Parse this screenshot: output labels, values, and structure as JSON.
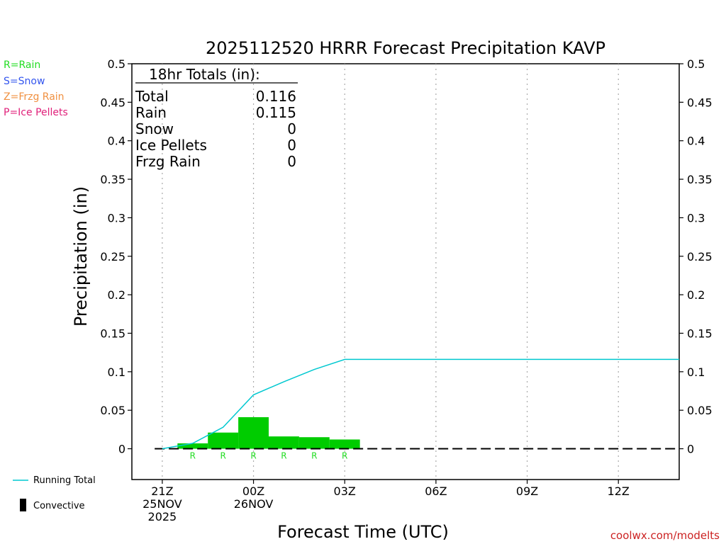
{
  "legend": {
    "rain": {
      "label": "R=Rain",
      "color": "#22dd22"
    },
    "snow": {
      "label": "S=Snow",
      "color": "#3355ee"
    },
    "frzg_rain": {
      "label": "Z=Frzg Rain",
      "color": "#f09040"
    },
    "ice_pellets": {
      "label": "P=Ice Pellets",
      "color": "#e0207a"
    },
    "running_total": {
      "label": "Running Total",
      "color": "#00c8d0"
    },
    "convective": {
      "label": "Convective",
      "color": "#000000"
    }
  },
  "totals": {
    "header": "18hr Totals (in):",
    "rows": [
      {
        "label": "Total",
        "value": "0.116"
      },
      {
        "label": "Rain",
        "value": "0.115"
      },
      {
        "label": "Snow",
        "value": "0"
      },
      {
        "label": "Ice Pellets",
        "value": "0"
      },
      {
        "label": "Frzg Rain",
        "value": "0"
      }
    ]
  },
  "watermark": "coolwx.com/modelts",
  "chart_data": {
    "type": "bar",
    "title": "2025112520 HRRR Forecast Precipitation KAVP",
    "xlabel": "Forecast Time (UTC)",
    "ylabel": "Precipitation (in)",
    "ylim": [
      -0.04,
      0.5
    ],
    "xlim_hours": [
      -1,
      17
    ],
    "y_ticks": [
      "0",
      "0.05",
      "0.1",
      "0.15",
      "0.2",
      "0.25",
      "0.3",
      "0.35",
      "0.4",
      "0.45",
      "0.5"
    ],
    "x_ticks": [
      {
        "hour": 0,
        "lines": [
          "21Z",
          "25NOV",
          "2025"
        ]
      },
      {
        "hour": 3,
        "lines": [
          "00Z",
          "26NOV"
        ]
      },
      {
        "hour": 6,
        "lines": [
          "03Z"
        ]
      },
      {
        "hour": 9,
        "lines": [
          "06Z"
        ]
      },
      {
        "hour": 12,
        "lines": [
          "09Z"
        ]
      },
      {
        "hour": 15,
        "lines": [
          "12Z"
        ]
      }
    ],
    "bars": {
      "name": "Rain",
      "color": "#00cc00",
      "start_hour": [
        0.5,
        1.5,
        2.5,
        3.5,
        4.5,
        5.5
      ],
      "values": [
        0.007,
        0.021,
        0.041,
        0.016,
        0.015,
        0.012
      ],
      "ptype": [
        "R",
        "R",
        "R",
        "R",
        "R",
        "R"
      ]
    },
    "running_total": {
      "hour": [
        0,
        1,
        2,
        3,
        4,
        5,
        6,
        7,
        8,
        9,
        10,
        11,
        12,
        13,
        14,
        15,
        16,
        17
      ],
      "values": [
        0.0,
        0.007,
        0.028,
        0.07,
        0.087,
        0.103,
        0.116,
        0.116,
        0.116,
        0.116,
        0.116,
        0.116,
        0.116,
        0.116,
        0.116,
        0.116,
        0.116,
        0.116
      ]
    },
    "grid": "x-dotted",
    "legend_position": "left"
  }
}
